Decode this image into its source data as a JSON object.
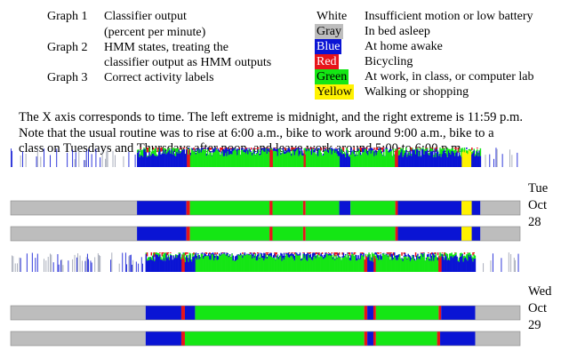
{
  "legend_left": [
    {
      "graph": "Graph 1",
      "desc": [
        "Classifier output",
        "(percent per minute)"
      ]
    },
    {
      "graph": "Graph 2",
      "desc": [
        "HMM states, treating the",
        "classifier output as HMM outputs"
      ]
    },
    {
      "graph": "Graph 3",
      "desc": [
        "Correct activity labels"
      ]
    }
  ],
  "legend_right": [
    {
      "color_name": "White",
      "swatch": "#ffffff",
      "text_color": "#000000",
      "meaning": "Insufficient motion or low battery"
    },
    {
      "color_name": "Gray",
      "swatch": "#bdbdbd",
      "text_color": "#000000",
      "meaning": "In bed asleep"
    },
    {
      "color_name": "Blue",
      "swatch": "#0a14d4",
      "text_color": "#ffffff",
      "meaning": "At home awake"
    },
    {
      "color_name": "Red",
      "swatch": "#e8141a",
      "text_color": "#ffffff",
      "meaning": "Bicycling"
    },
    {
      "color_name": "Green",
      "swatch": "#14e614",
      "text_color": "#000000",
      "meaning": "At work, in class, or computer lab"
    },
    {
      "color_name": "Yellow",
      "swatch": "#fff200",
      "text_color": "#000000",
      "meaning": "Walking or shopping"
    }
  ],
  "paragraph": [
    "The X axis corresponds to time.  The left extreme is midnight, and the right extreme is 11:59 p.m.",
    "Note that the usual routine was to rise at 6:00 a.m., bike to work around 9:00 a.m., bike to a",
    "class on Tuesdays and Thursdays after noon, and leave work around 5:00 to 6:00 p.m."
  ],
  "days": [
    {
      "label": [
        "Tue",
        "Oct",
        "28"
      ],
      "hmm_states": [
        {
          "start": 0.0,
          "end": 0.248,
          "state": "Gray"
        },
        {
          "start": 0.248,
          "end": 0.345,
          "state": "Blue"
        },
        {
          "start": 0.345,
          "end": 0.352,
          "state": "Red"
        },
        {
          "start": 0.352,
          "end": 0.508,
          "state": "Green"
        },
        {
          "start": 0.508,
          "end": 0.514,
          "state": "Red"
        },
        {
          "start": 0.514,
          "end": 0.574,
          "state": "Green"
        },
        {
          "start": 0.574,
          "end": 0.579,
          "state": "Red"
        },
        {
          "start": 0.579,
          "end": 0.645,
          "state": "Green"
        },
        {
          "start": 0.645,
          "end": 0.667,
          "state": "Blue"
        },
        {
          "start": 0.667,
          "end": 0.755,
          "state": "Green"
        },
        {
          "start": 0.755,
          "end": 0.76,
          "state": "Red"
        },
        {
          "start": 0.76,
          "end": 0.885,
          "state": "Blue"
        },
        {
          "start": 0.885,
          "end": 0.905,
          "state": "Yellow"
        },
        {
          "start": 0.905,
          "end": 0.922,
          "state": "Blue"
        },
        {
          "start": 0.922,
          "end": 1.0,
          "state": "Gray"
        }
      ],
      "correct_labels": [
        {
          "start": 0.0,
          "end": 0.248,
          "state": "Gray"
        },
        {
          "start": 0.248,
          "end": 0.345,
          "state": "Blue"
        },
        {
          "start": 0.345,
          "end": 0.352,
          "state": "Red"
        },
        {
          "start": 0.352,
          "end": 0.508,
          "state": "Green"
        },
        {
          "start": 0.508,
          "end": 0.514,
          "state": "Red"
        },
        {
          "start": 0.514,
          "end": 0.574,
          "state": "Green"
        },
        {
          "start": 0.574,
          "end": 0.579,
          "state": "Red"
        },
        {
          "start": 0.579,
          "end": 0.755,
          "state": "Green"
        },
        {
          "start": 0.755,
          "end": 0.76,
          "state": "Red"
        },
        {
          "start": 0.76,
          "end": 0.885,
          "state": "Blue"
        },
        {
          "start": 0.885,
          "end": 0.905,
          "state": "Yellow"
        },
        {
          "start": 0.905,
          "end": 0.922,
          "state": "Blue"
        },
        {
          "start": 0.922,
          "end": 1.0,
          "state": "Gray"
        }
      ]
    },
    {
      "label": [
        "Wed",
        "Oct",
        "29"
      ],
      "hmm_states": [
        {
          "start": 0.0,
          "end": 0.265,
          "state": "Gray"
        },
        {
          "start": 0.265,
          "end": 0.335,
          "state": "Blue"
        },
        {
          "start": 0.335,
          "end": 0.342,
          "state": "Red"
        },
        {
          "start": 0.342,
          "end": 0.362,
          "state": "Blue"
        },
        {
          "start": 0.362,
          "end": 0.694,
          "state": "Green"
        },
        {
          "start": 0.694,
          "end": 0.7,
          "state": "Red"
        },
        {
          "start": 0.7,
          "end": 0.712,
          "state": "Blue"
        },
        {
          "start": 0.712,
          "end": 0.717,
          "state": "Red"
        },
        {
          "start": 0.717,
          "end": 0.84,
          "state": "Green"
        },
        {
          "start": 0.84,
          "end": 0.845,
          "state": "Red"
        },
        {
          "start": 0.845,
          "end": 0.912,
          "state": "Blue"
        },
        {
          "start": 0.912,
          "end": 1.0,
          "state": "Gray"
        }
      ],
      "correct_labels": [
        {
          "start": 0.0,
          "end": 0.265,
          "state": "Gray"
        },
        {
          "start": 0.265,
          "end": 0.335,
          "state": "Blue"
        },
        {
          "start": 0.335,
          "end": 0.342,
          "state": "Red"
        },
        {
          "start": 0.342,
          "end": 0.694,
          "state": "Green"
        },
        {
          "start": 0.694,
          "end": 0.7,
          "state": "Red"
        },
        {
          "start": 0.7,
          "end": 0.712,
          "state": "Blue"
        },
        {
          "start": 0.712,
          "end": 0.717,
          "state": "Red"
        },
        {
          "start": 0.717,
          "end": 0.837,
          "state": "Green"
        },
        {
          "start": 0.837,
          "end": 0.843,
          "state": "Red"
        },
        {
          "start": 0.843,
          "end": 0.912,
          "state": "Blue"
        },
        {
          "start": 0.912,
          "end": 1.0,
          "state": "Gray"
        }
      ]
    }
  ],
  "colors": {
    "Gray": "#bdbdbd",
    "Blue": "#0a14d4",
    "Red": "#e8141a",
    "Green": "#14e614",
    "Yellow": "#fff200",
    "White": "#ffffff"
  }
}
